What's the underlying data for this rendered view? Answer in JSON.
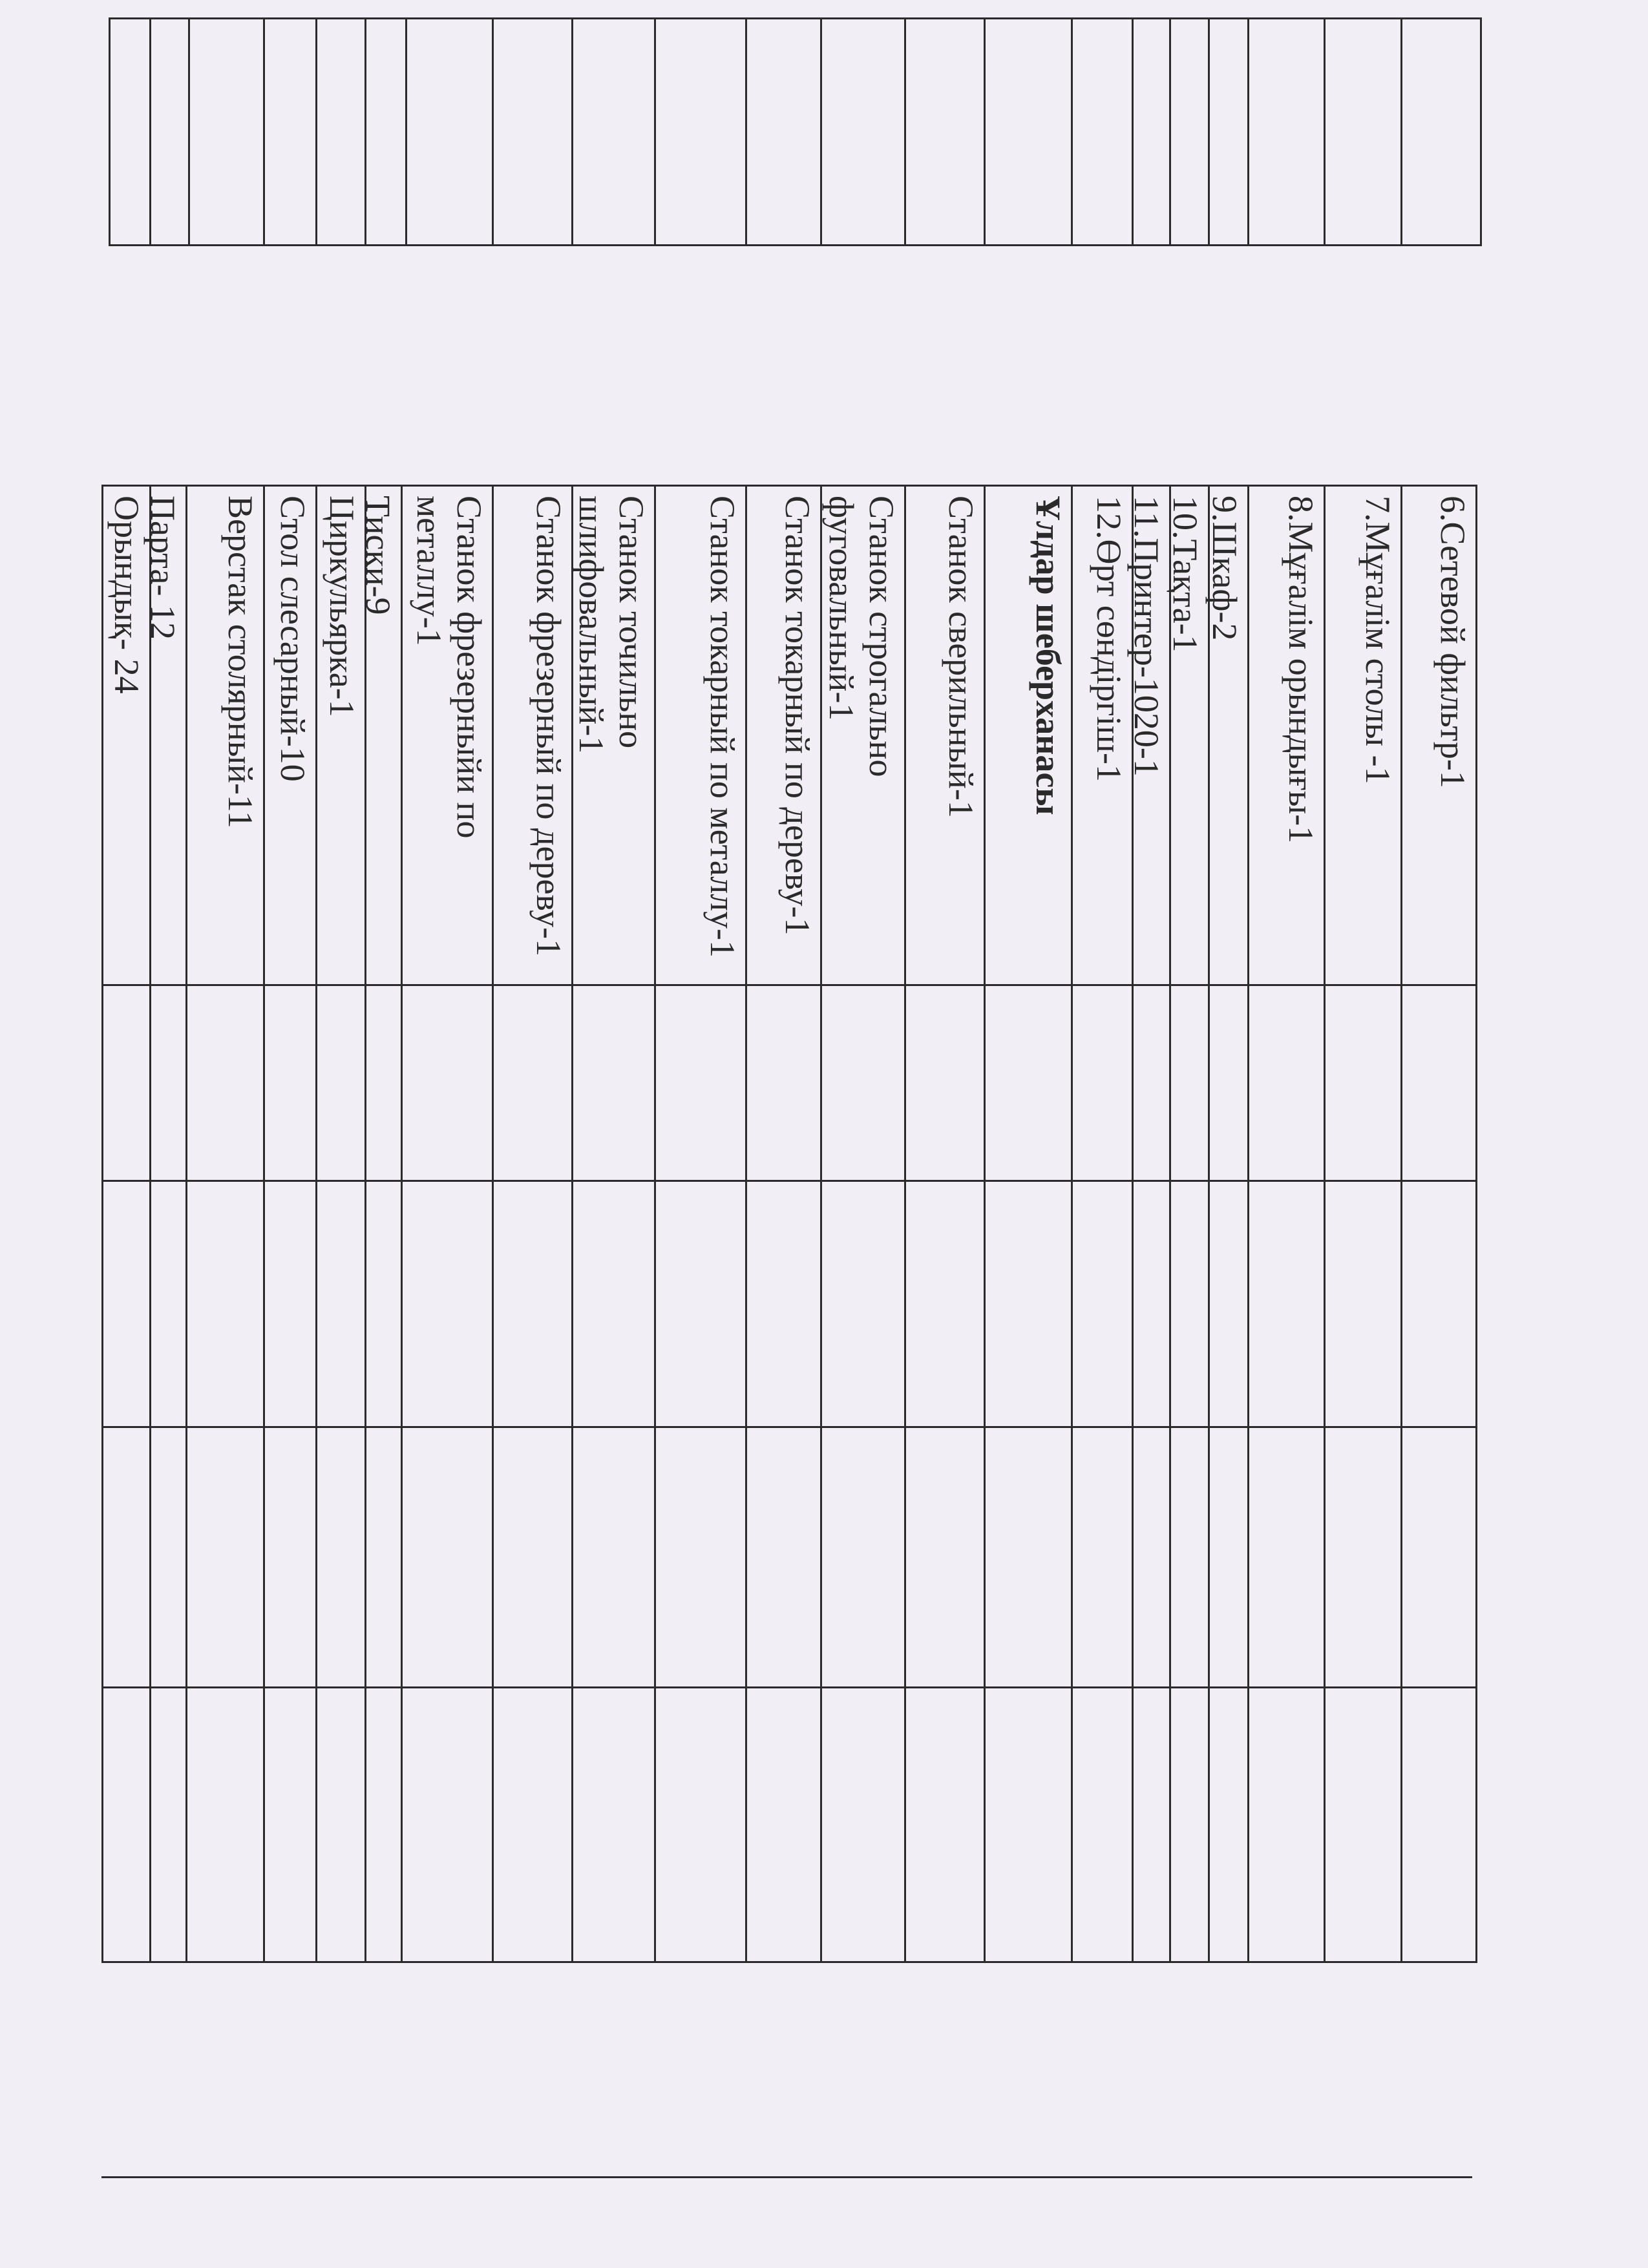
{
  "document": {
    "inventory_items": [
      {
        "text": "6.Сетевой фильтр-1",
        "bold": false
      },
      {
        "text": "7.Мұғалім столы -1",
        "bold": false
      },
      {
        "text": "8.Мұғалім орындығы-1",
        "bold": false
      },
      {
        "text": "9.Шкаф-2",
        "bold": false
      },
      {
        "text": "10.Тақта-1",
        "bold": false
      },
      {
        "text": "11.Принтер-1020-1",
        "bold": false
      },
      {
        "text": "12.Өрт сөндіргіш-1",
        "bold": false
      },
      {
        "text": "Ұлдар шеберханасы",
        "bold": true
      },
      {
        "text": "Станок сверильный-1",
        "bold": false
      },
      {
        "text": "Станок строгально фуговальный-1",
        "bold": false
      },
      {
        "text": "Станок токарный по дереву-1",
        "bold": false
      },
      {
        "text": "Станок токарный по металлу-1",
        "bold": false
      },
      {
        "text": "Станок точильно шлифовальный-1",
        "bold": false
      },
      {
        "text": "Станок фрезерный по дереву-1",
        "bold": false
      },
      {
        "text": "Станок фрезерныйи по металлу-1",
        "bold": false
      },
      {
        "text": "Тиски-9",
        "bold": false
      },
      {
        "text": "Циркульярка-1",
        "bold": false
      },
      {
        "text": "Стол слесарный-10",
        "bold": false
      },
      {
        "text": "Верстак столярный-11",
        "bold": false
      },
      {
        "text": "Парта- 12",
        "bold": false
      },
      {
        "text": "Орындық- 24",
        "bold": false
      }
    ]
  }
}
